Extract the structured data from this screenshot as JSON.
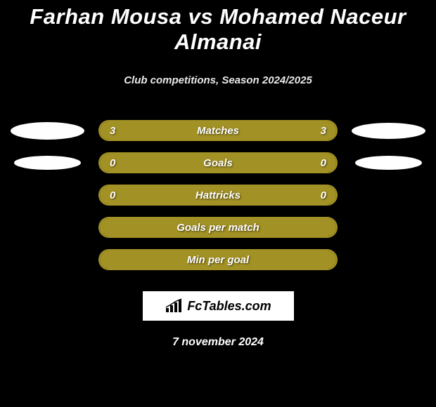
{
  "title": "Farhan Mousa vs Mohamed Naceur Almanai",
  "subtitle": "Club competitions, Season 2024/2025",
  "date": "7 november 2024",
  "logo_text": "FcTables.com",
  "colors": {
    "background": "#000000",
    "bar_olive": "#a29124",
    "bar_border": "#a29124",
    "oval": "#ffffff",
    "text": "#ffffff"
  },
  "stats": [
    {
      "label": "Matches",
      "left_value": "3",
      "right_value": "3",
      "left_fill_pct": 50,
      "right_fill_pct": 50,
      "left_fill_color": "#a29124",
      "right_fill_color": "#a29124",
      "show_left_oval": true,
      "show_right_oval": true,
      "left_oval_small": false,
      "right_oval_small": false
    },
    {
      "label": "Goals",
      "left_value": "0",
      "right_value": "0",
      "left_fill_pct": 0,
      "right_fill_pct": 100,
      "left_fill_color": "#a29124",
      "right_fill_color": "#a29124",
      "show_left_oval": true,
      "show_right_oval": true,
      "left_oval_small": true,
      "right_oval_small": true
    },
    {
      "label": "Hattricks",
      "left_value": "0",
      "right_value": "0",
      "left_fill_pct": 0,
      "right_fill_pct": 100,
      "left_fill_color": "#a29124",
      "right_fill_color": "#a29124",
      "show_left_oval": false,
      "show_right_oval": false,
      "left_oval_small": false,
      "right_oval_small": false
    },
    {
      "label": "Goals per match",
      "left_value": "",
      "right_value": "",
      "left_fill_pct": 0,
      "right_fill_pct": 100,
      "left_fill_color": "#a29124",
      "right_fill_color": "#a29124",
      "show_left_oval": false,
      "show_right_oval": false,
      "left_oval_small": false,
      "right_oval_small": false
    },
    {
      "label": "Min per goal",
      "left_value": "",
      "right_value": "",
      "left_fill_pct": 0,
      "right_fill_pct": 100,
      "left_fill_color": "#a29124",
      "right_fill_color": "#a29124",
      "show_left_oval": false,
      "show_right_oval": false,
      "left_oval_small": false,
      "right_oval_small": false
    }
  ]
}
